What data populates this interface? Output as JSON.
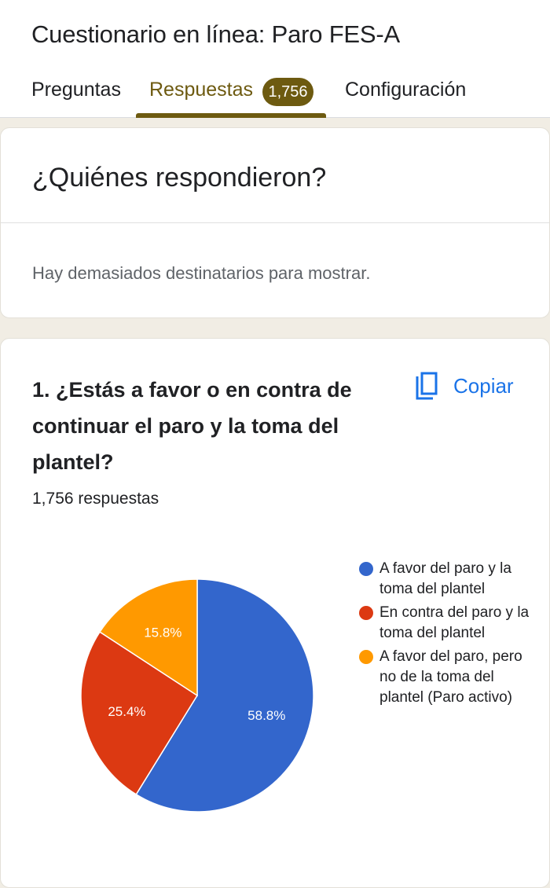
{
  "header": {
    "title": "Cuestionario en línea: Paro FES-A",
    "tabs": {
      "questions": "Preguntas",
      "responses": "Respuestas",
      "responses_count": "1,756",
      "settings": "Configuración"
    },
    "accent_color": "#6d5a10"
  },
  "who_card": {
    "title": "¿Quiénes respondieron?",
    "note": "Hay demasiados destinatarios para mostrar."
  },
  "question_card": {
    "title": "1. ¿Estás a favor o en contra de continuar el paro y la toma del plantel?",
    "copy_label": "Copiar",
    "copy_icon": "copy-icon",
    "response_count": "1,756 respuestas"
  },
  "chart_data": {
    "type": "pie",
    "categories": [
      "A favor del paro y la toma del plantel",
      "En contra del paro y la toma del plantel",
      "A favor del paro, pero no de la toma del plantel (Paro activo)"
    ],
    "values": [
      58.8,
      25.4,
      15.8
    ],
    "labels": [
      "58.8%",
      "25.4%",
      "15.8%"
    ],
    "colors": [
      "#3366cc",
      "#dc3912",
      "#ff9900"
    ],
    "start_angle_deg": 90,
    "direction": "counterclockwise",
    "legend_position": "right"
  }
}
